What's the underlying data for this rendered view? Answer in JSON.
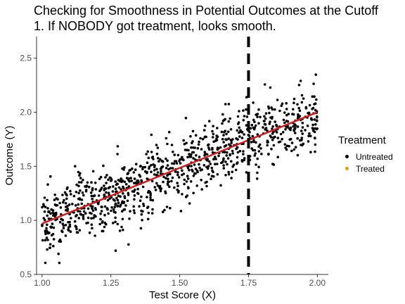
{
  "chart_data": {
    "type": "scatter",
    "title": "Checking for Smoothness in Potential Outcomes at the Cutoff",
    "subtitle": "1. If NOBODY got treatment, looks smooth.",
    "xlabel": "Test Score (X)",
    "ylabel": "Outcome (Y)",
    "xlim": [
      0.98,
      2.04
    ],
    "ylim": [
      0.5,
      2.7
    ],
    "x_ticks": [
      "1.00",
      "1.25",
      "1.50",
      "1.75",
      "2.00"
    ],
    "y_ticks": [
      "0.5",
      "1.0",
      "1.5",
      "2.0",
      "2.5"
    ],
    "grid": false,
    "legend_position": "right",
    "cutoff": {
      "x": 1.75,
      "style": "dashed",
      "color": "#000000"
    },
    "fit_line": {
      "x": [
        1.0,
        2.0
      ],
      "y": [
        0.97,
        2.0
      ],
      "color": "#cc1f1f"
    },
    "series": [
      {
        "name": "Untreated",
        "color": "#000000",
        "n_points": 1000,
        "x_range": [
          1.0,
          2.0
        ],
        "intercept": -0.06,
        "slope": 1.03,
        "noise_sd": 0.16
      },
      {
        "name": "Treated",
        "color": "#e69f00",
        "n_points": 0
      }
    ],
    "legend": {
      "title": "Treatment",
      "items": [
        "Untreated",
        "Treated"
      ]
    }
  }
}
